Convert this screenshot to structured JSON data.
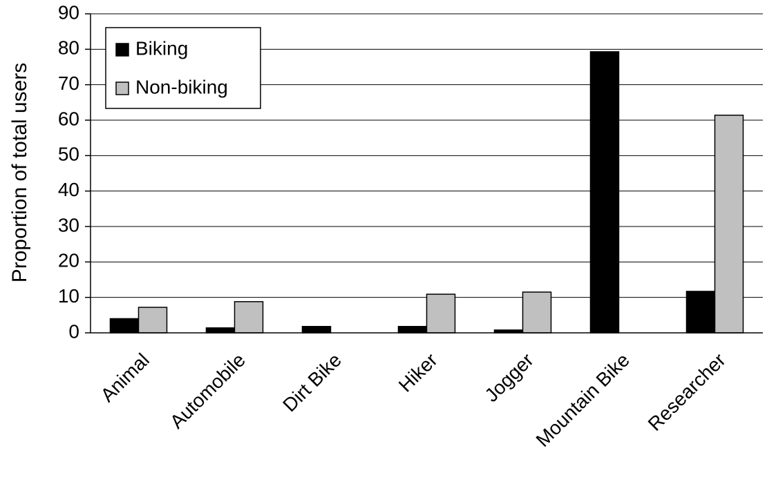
{
  "chart_data": {
    "type": "bar",
    "ylabel": "Proportion of total users",
    "categories": [
      "Animal",
      "Automobile",
      "Dirt Bike",
      "Hiker",
      "Jogger",
      "Mountain Bike",
      "Researcher"
    ],
    "series": [
      {
        "name": "Biking",
        "color": "#000000",
        "values": [
          4,
          1.4,
          1.8,
          1.8,
          0.8,
          79.3,
          11.7
        ]
      },
      {
        "name": "Non-biking",
        "color": "#c0c0c0",
        "values": [
          7.2,
          8.8,
          0,
          10.9,
          11.5,
          0,
          61.4
        ]
      }
    ],
    "ylim": [
      0,
      90
    ],
    "yticks": [
      0,
      10,
      20,
      30,
      40,
      50,
      60,
      70,
      80,
      90
    ],
    "grid": true,
    "legend": "upper left"
  }
}
